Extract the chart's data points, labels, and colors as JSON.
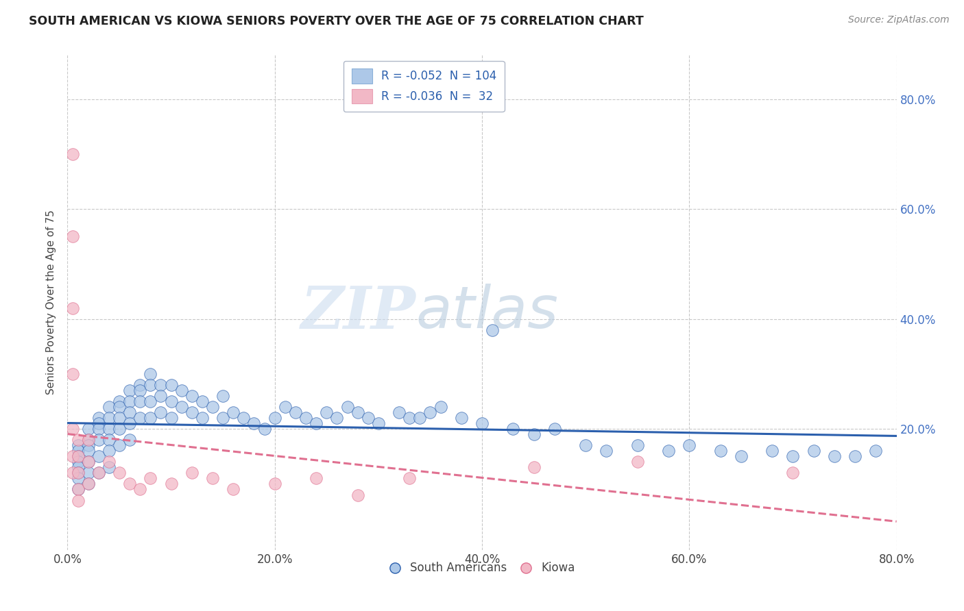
{
  "title": "SOUTH AMERICAN VS KIOWA SENIORS POVERTY OVER THE AGE OF 75 CORRELATION CHART",
  "source": "Source: ZipAtlas.com",
  "ylabel": "Seniors Poverty Over the Age of 75",
  "xlabel_legend1": "South Americans",
  "xlabel_legend2": "Kiowa",
  "xlim": [
    0.0,
    0.8
  ],
  "ylim": [
    -0.02,
    0.88
  ],
  "xticks": [
    0.0,
    0.2,
    0.4,
    0.6,
    0.8
  ],
  "yticks": [
    0.2,
    0.4,
    0.6,
    0.8
  ],
  "xticklabels": [
    "0.0%",
    "20.0%",
    "40.0%",
    "60.0%",
    "80.0%"
  ],
  "yticklabels": [
    "20.0%",
    "40.0%",
    "60.0%",
    "80.0%"
  ],
  "color_blue": "#adc8e8",
  "color_pink": "#f2b8c6",
  "line_blue": "#2b5fad",
  "line_pink": "#e07090",
  "background": "#ffffff",
  "grid_color": "#c8c8c8",
  "watermark_zip": "ZIP",
  "watermark_atlas": "atlas",
  "sa_x": [
    0.01,
    0.01,
    0.01,
    0.01,
    0.01,
    0.01,
    0.01,
    0.01,
    0.02,
    0.02,
    0.02,
    0.02,
    0.02,
    0.02,
    0.02,
    0.03,
    0.03,
    0.03,
    0.03,
    0.03,
    0.03,
    0.04,
    0.04,
    0.04,
    0.04,
    0.04,
    0.04,
    0.05,
    0.05,
    0.05,
    0.05,
    0.05,
    0.06,
    0.06,
    0.06,
    0.06,
    0.06,
    0.07,
    0.07,
    0.07,
    0.07,
    0.08,
    0.08,
    0.08,
    0.08,
    0.09,
    0.09,
    0.09,
    0.1,
    0.1,
    0.1,
    0.11,
    0.11,
    0.12,
    0.12,
    0.13,
    0.13,
    0.14,
    0.15,
    0.15,
    0.16,
    0.17,
    0.18,
    0.19,
    0.2,
    0.21,
    0.22,
    0.23,
    0.24,
    0.25,
    0.26,
    0.27,
    0.28,
    0.29,
    0.3,
    0.32,
    0.33,
    0.34,
    0.35,
    0.36,
    0.38,
    0.4,
    0.41,
    0.43,
    0.45,
    0.47,
    0.5,
    0.52,
    0.55,
    0.58,
    0.6,
    0.63,
    0.65,
    0.68,
    0.7,
    0.72,
    0.74,
    0.76,
    0.78
  ],
  "sa_y": [
    0.17,
    0.16,
    0.15,
    0.14,
    0.13,
    0.12,
    0.11,
    0.09,
    0.2,
    0.18,
    0.17,
    0.16,
    0.14,
    0.12,
    0.1,
    0.22,
    0.21,
    0.2,
    0.18,
    0.15,
    0.12,
    0.24,
    0.22,
    0.2,
    0.18,
    0.16,
    0.13,
    0.25,
    0.24,
    0.22,
    0.2,
    0.17,
    0.27,
    0.25,
    0.23,
    0.21,
    0.18,
    0.28,
    0.27,
    0.25,
    0.22,
    0.3,
    0.28,
    0.25,
    0.22,
    0.28,
    0.26,
    0.23,
    0.28,
    0.25,
    0.22,
    0.27,
    0.24,
    0.26,
    0.23,
    0.25,
    0.22,
    0.24,
    0.26,
    0.22,
    0.23,
    0.22,
    0.21,
    0.2,
    0.22,
    0.24,
    0.23,
    0.22,
    0.21,
    0.23,
    0.22,
    0.24,
    0.23,
    0.22,
    0.21,
    0.23,
    0.22,
    0.22,
    0.23,
    0.24,
    0.22,
    0.21,
    0.38,
    0.2,
    0.19,
    0.2,
    0.17,
    0.16,
    0.17,
    0.16,
    0.17,
    0.16,
    0.15,
    0.16,
    0.15,
    0.16,
    0.15,
    0.15,
    0.16
  ],
  "ki_x": [
    0.005,
    0.005,
    0.005,
    0.005,
    0.005,
    0.005,
    0.005,
    0.01,
    0.01,
    0.01,
    0.01,
    0.01,
    0.02,
    0.02,
    0.02,
    0.03,
    0.04,
    0.05,
    0.06,
    0.07,
    0.08,
    0.1,
    0.12,
    0.14,
    0.16,
    0.2,
    0.24,
    0.28,
    0.33,
    0.45,
    0.55,
    0.7
  ],
  "ki_y": [
    0.7,
    0.55,
    0.42,
    0.3,
    0.2,
    0.15,
    0.12,
    0.18,
    0.15,
    0.12,
    0.09,
    0.07,
    0.18,
    0.14,
    0.1,
    0.12,
    0.14,
    0.12,
    0.1,
    0.09,
    0.11,
    0.1,
    0.12,
    0.11,
    0.09,
    0.1,
    0.11,
    0.08,
    0.11,
    0.13,
    0.14,
    0.12
  ]
}
